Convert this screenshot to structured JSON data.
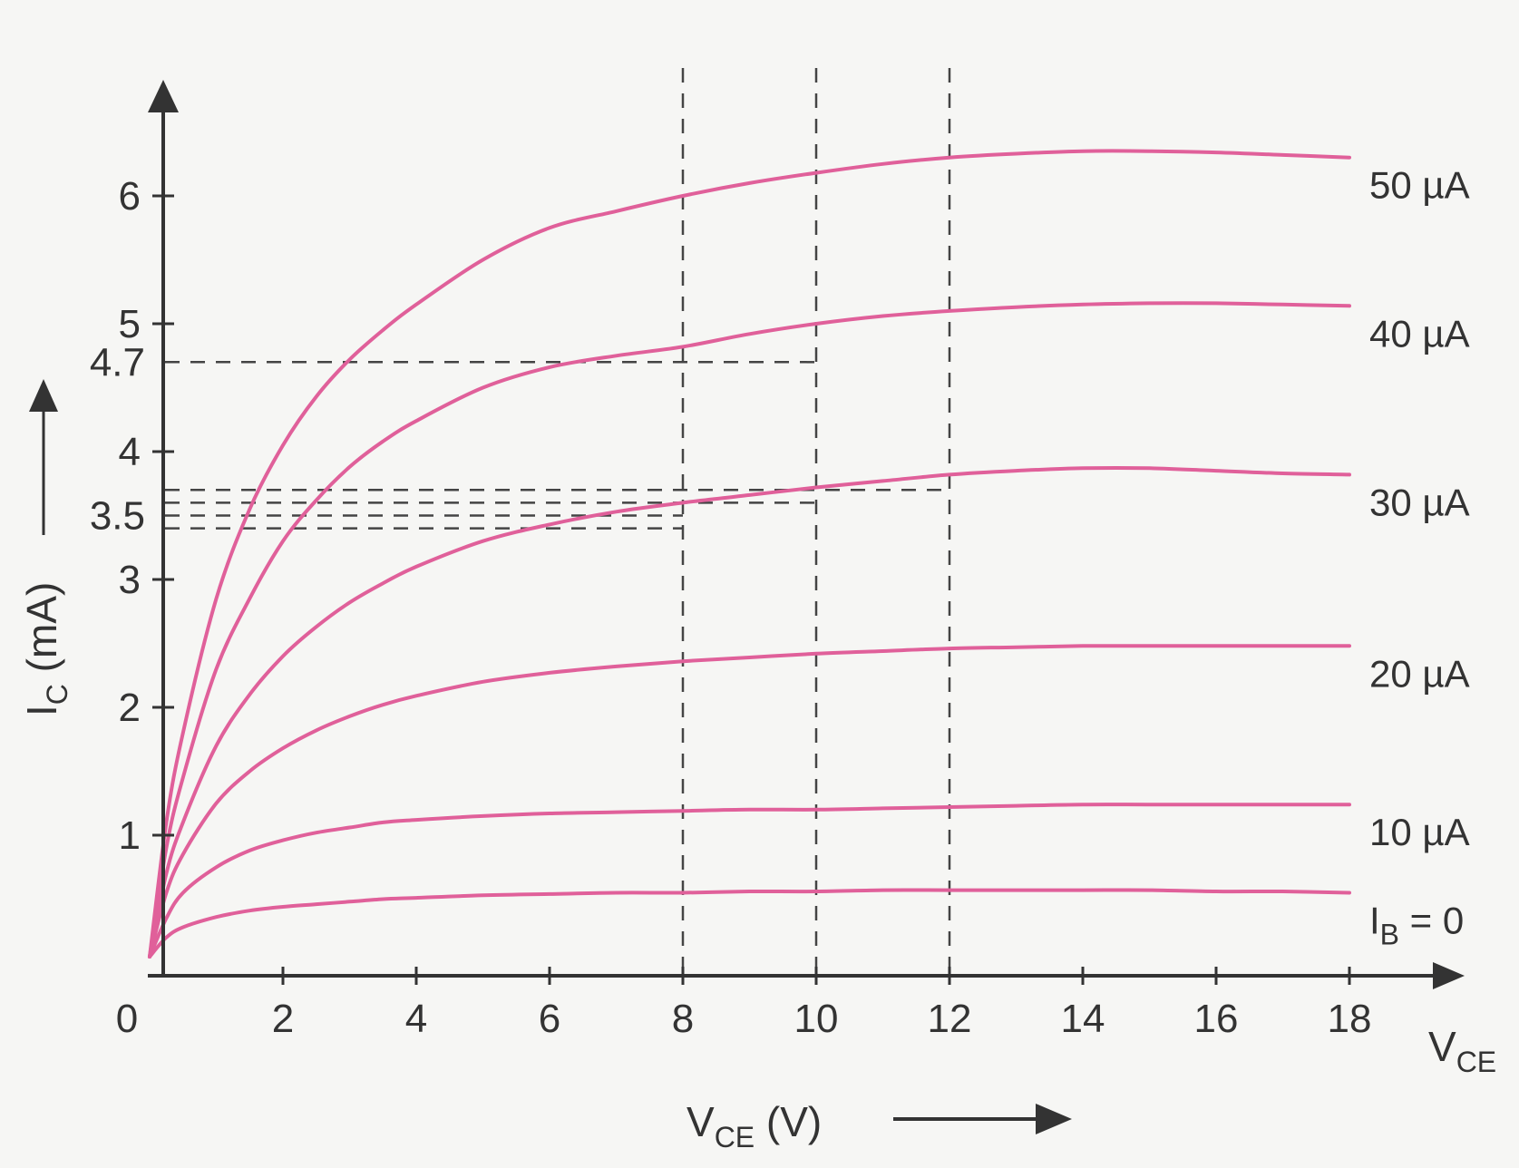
{
  "chart_data": {
    "type": "line",
    "x_ticks": [
      "0",
      "2",
      "4",
      "6",
      "8",
      "10",
      "12",
      "14",
      "16",
      "18"
    ],
    "y_ticks": [
      "1",
      "2",
      "3",
      "4",
      "5",
      "6"
    ],
    "y_extra_ticks": [
      "3.5",
      "4.7"
    ],
    "xlim": [
      0,
      19
    ],
    "ylim": [
      0,
      6.9
    ],
    "color": "#e0609a",
    "x": [
      0,
      0.25,
      0.5,
      1,
      1.5,
      2,
      2.5,
      3,
      3.5,
      4,
      5,
      6,
      7,
      8,
      9,
      10,
      11,
      12,
      13,
      14,
      15,
      16,
      17,
      18
    ],
    "series": [
      {
        "name": "I_B = 0",
        "label_main": "I",
        "label_sub": "B",
        "label_tail": " = 0",
        "values": [
          0.05,
          0.2,
          0.28,
          0.36,
          0.41,
          0.44,
          0.46,
          0.48,
          0.5,
          0.51,
          0.53,
          0.54,
          0.55,
          0.55,
          0.56,
          0.56,
          0.57,
          0.57,
          0.57,
          0.57,
          0.57,
          0.56,
          0.56,
          0.55
        ]
      },
      {
        "name": "10 µA",
        "label_main": "10 µA",
        "values": [
          0.05,
          0.35,
          0.55,
          0.75,
          0.88,
          0.96,
          1.02,
          1.06,
          1.1,
          1.12,
          1.15,
          1.17,
          1.18,
          1.19,
          1.2,
          1.2,
          1.21,
          1.22,
          1.23,
          1.24,
          1.24,
          1.24,
          1.24,
          1.24
        ]
      },
      {
        "name": "20 µA",
        "label_main": "20 µA",
        "values": [
          0.05,
          0.55,
          0.85,
          1.25,
          1.5,
          1.68,
          1.82,
          1.93,
          2.02,
          2.09,
          2.2,
          2.27,
          2.32,
          2.36,
          2.39,
          2.42,
          2.44,
          2.46,
          2.47,
          2.48,
          2.48,
          2.48,
          2.48,
          2.48
        ]
      },
      {
        "name": "30 µA",
        "label_main": "30 µA",
        "values": [
          0.05,
          0.7,
          1.1,
          1.7,
          2.1,
          2.4,
          2.63,
          2.82,
          2.97,
          3.1,
          3.3,
          3.43,
          3.53,
          3.6,
          3.66,
          3.72,
          3.77,
          3.82,
          3.85,
          3.87,
          3.87,
          3.85,
          3.83,
          3.82
        ]
      },
      {
        "name": "40 µA",
        "label_main": "40 µA",
        "values": [
          0.05,
          0.9,
          1.45,
          2.3,
          2.85,
          3.3,
          3.62,
          3.88,
          4.08,
          4.24,
          4.5,
          4.66,
          4.75,
          4.82,
          4.92,
          5.0,
          5.06,
          5.1,
          5.13,
          5.15,
          5.16,
          5.16,
          5.15,
          5.14
        ]
      },
      {
        "name": "50 µA",
        "label_main": "50 µA",
        "values": [
          0.05,
          1.1,
          1.8,
          2.85,
          3.55,
          4.05,
          4.43,
          4.72,
          4.95,
          5.15,
          5.5,
          5.75,
          5.88,
          6.0,
          6.1,
          6.18,
          6.25,
          6.3,
          6.33,
          6.35,
          6.35,
          6.34,
          6.32,
          6.3
        ]
      }
    ],
    "vertical_guides": [
      8,
      10,
      12
    ],
    "horizontal_guides": [
      {
        "y": 4.7,
        "x_end": 10
      },
      {
        "y": 3.7,
        "x_end": 12
      },
      {
        "y": 3.6,
        "x_end": 10
      },
      {
        "y": 3.5,
        "x_end": 8
      },
      {
        "y": 3.4,
        "x_end": 8
      }
    ],
    "xlabel_main": "V",
    "xlabel_sub": "CE",
    "xlabel_tail": " (V)",
    "x_axis_end_main": "V",
    "x_axis_end_sub": "CE",
    "ylabel_main": "I",
    "ylabel_sub": "C",
    "ylabel_tail": " (mA)"
  }
}
